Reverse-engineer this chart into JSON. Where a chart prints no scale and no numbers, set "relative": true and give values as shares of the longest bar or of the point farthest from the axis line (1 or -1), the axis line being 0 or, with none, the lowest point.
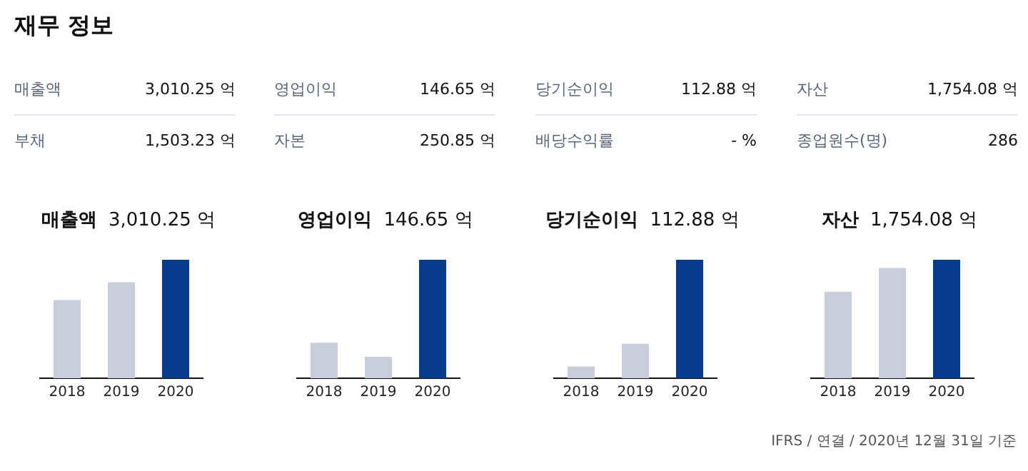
{
  "chart_data": [
    {
      "type": "other",
      "title": "재무 정보",
      "annotations": [
        "매출액",
        "3,010.25 억",
        "영업이익",
        "146.65 억",
        "당기순이익",
        "112.88 억",
        "자산",
        "1,754.08 억",
        "부채",
        "1,503.23 억",
        "자본",
        "250.85 억",
        "배당수익률",
        "- %",
        "종업원수(명)",
        "286",
        "IFRS / 연결 / 2020년 12월 31일 기준"
      ]
    },
    {
      "type": "bar",
      "title": "매출액",
      "subtitle": "3,010.25 억",
      "categories": [
        "2018",
        "2019",
        "2020"
      ],
      "values": [
        0.66,
        0.81,
        1
      ],
      "colors": [
        "#c9ceda",
        "#c9ceda",
        "#0a3a8c"
      ],
      "relative": true
    },
    {
      "type": "bar",
      "title": "영업이익",
      "subtitle": "146.65 억",
      "categories": [
        "2018",
        "2019",
        "2020"
      ],
      "values": [
        0.3,
        0.18,
        1
      ],
      "colors": [
        "#c9ceda",
        "#c9ceda",
        "#0a3a8c"
      ],
      "relative": true
    },
    {
      "type": "bar",
      "title": "당기순이익",
      "subtitle": "112.88 억",
      "categories": [
        "2018",
        "2019",
        "2020"
      ],
      "values": [
        0.1,
        0.29,
        1
      ],
      "colors": [
        "#c9ceda",
        "#c9ceda",
        "#0a3a8c"
      ],
      "relative": true
    },
    {
      "type": "bar",
      "title": "자산",
      "subtitle": "1,754.08 억",
      "categories": [
        "2018",
        "2019",
        "2020"
      ],
      "values": [
        0.73,
        0.93,
        1
      ],
      "colors": [
        "#c9ceda",
        "#c9ceda",
        "#0a3a8c"
      ],
      "relative": true
    }
  ]
}
